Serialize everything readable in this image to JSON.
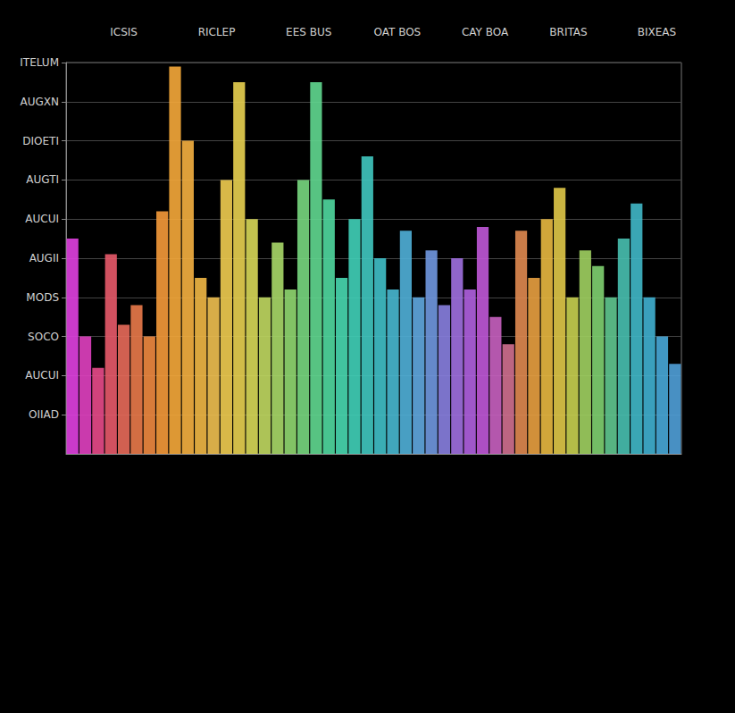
{
  "chart_data": {
    "type": "bar",
    "column_headers": [
      "ICSIS",
      "RICLEP",
      "EES BUS",
      "OAT BOS",
      "CAY BOA",
      "BRITAS",
      "BIXEAS"
    ],
    "categories": [
      null,
      null,
      null,
      null,
      null,
      null,
      null,
      null,
      null,
      null,
      null,
      null,
      null,
      null,
      null,
      null,
      null,
      null,
      null,
      null,
      null,
      null,
      null,
      null,
      null,
      null,
      null,
      null,
      null,
      null,
      null,
      null,
      null,
      null,
      null,
      null,
      null,
      null,
      null,
      null,
      null,
      null,
      null,
      null,
      null,
      null,
      null,
      null
    ],
    "values": [
      55,
      30,
      22,
      51,
      33,
      38,
      30,
      62,
      99,
      80,
      45,
      40,
      70,
      95,
      60,
      40,
      54,
      42,
      70,
      95,
      65,
      45,
      60,
      76,
      50,
      42,
      57,
      40,
      52,
      38,
      50,
      42,
      58,
      35,
      28,
      57,
      45,
      60,
      68,
      40,
      52,
      48,
      40,
      55,
      64,
      40,
      30,
      23
    ],
    "colors": [
      "#e040e0",
      "#e040c0",
      "#e84a8a",
      "#e85a6a",
      "#e86a5a",
      "#ea7a4a",
      "#f08a40",
      "#f59a3a",
      "#f5a83a",
      "#f5b040",
      "#f2b845",
      "#f0c050",
      "#f0cc50",
      "#e8d050",
      "#d8d858",
      "#c0d860",
      "#a8d868",
      "#90d870",
      "#78d880",
      "#60d890",
      "#50d8a0",
      "#48d8b0",
      "#40d0b8",
      "#40c8c0",
      "#40c0c8",
      "#48b8d0",
      "#50b0d8",
      "#60a8e0",
      "#7098e0",
      "#8880e0",
      "#a070e0",
      "#b060e0",
      "#c058d8",
      "#c860c0",
      "#d07090",
      "#e08a50",
      "#e8a040",
      "#e8b840",
      "#e0c848",
      "#c8d050",
      "#a0d060",
      "#80d070",
      "#60c890",
      "#48c0b0",
      "#40b8c8",
      "#40b0d0",
      "#48a8d8",
      "#50a0d8"
    ],
    "ylim": [
      0,
      100
    ],
    "yticks": [
      {
        "value": 10,
        "label": "OIIAD"
      },
      {
        "value": 20,
        "label": "AUCUI"
      },
      {
        "value": 30,
        "label": "SOCO"
      },
      {
        "value": 40,
        "label": "MODS"
      },
      {
        "value": 50,
        "label": "AUGII"
      },
      {
        "value": 60,
        "label": "AUCUI"
      },
      {
        "value": 70,
        "label": "AUGTI"
      },
      {
        "value": 80,
        "label": "DIOETI"
      },
      {
        "value": 90,
        "label": "AUGXN"
      },
      {
        "value": 100,
        "label": "ITELUM"
      }
    ],
    "grid": true,
    "tick_labels": "y"
  }
}
